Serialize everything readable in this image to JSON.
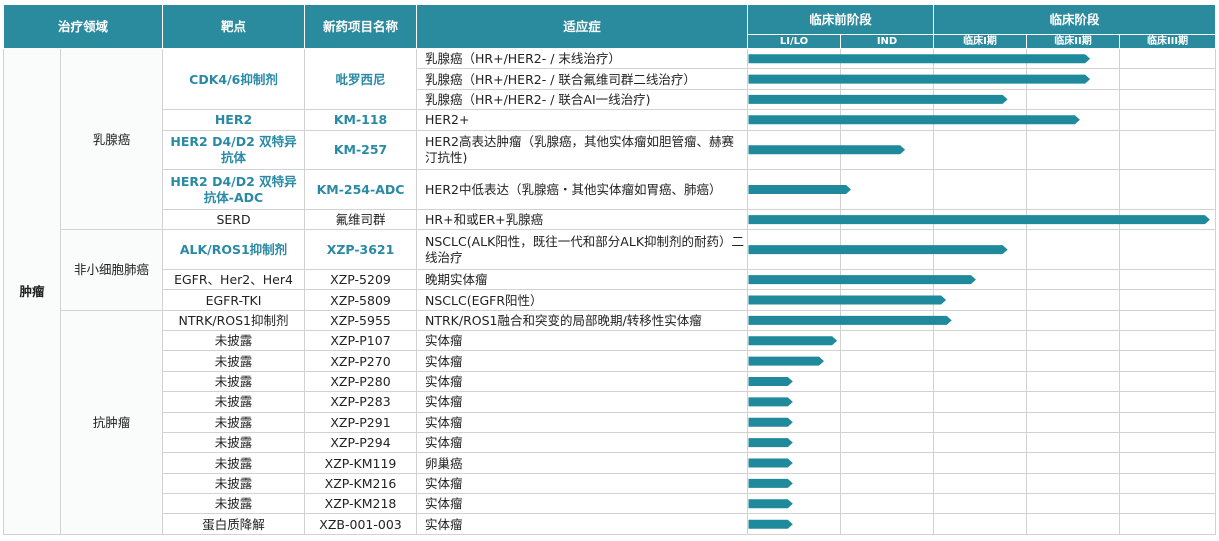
{
  "header": {
    "area": "治疗领域",
    "target": "靶点",
    "project": "新药项目名称",
    "indication": "适应症",
    "preclinical": "临床前阶段",
    "clinical": "临床阶段",
    "stages": [
      "LI/LO",
      "IND",
      "临床I期",
      "临床II期",
      "临床III期"
    ]
  },
  "areas": {
    "tumor": "肿瘤",
    "breast": "乳腺癌",
    "nsclc": "非小细胞肺癌",
    "antitumor": "抗肿瘤"
  },
  "bar_color": "#1f8a9c",
  "rows": [
    {
      "target": "CDK4/6抑制剂",
      "project": "吡罗西尼",
      "indication": "乳腺癌（HR+/HER2- / 末线治疗）",
      "progress": 0.733
    },
    {
      "target": "",
      "project": "",
      "indication": "乳腺癌（HR+/HER2- / 联合氟维司群二线治疗）",
      "progress": 0.733
    },
    {
      "target": "",
      "project": "",
      "indication": "乳腺癌（HR+/HER2- / 联合AI一线治疗)",
      "progress": 0.556
    },
    {
      "target": "HER2",
      "project": "KM-118",
      "indication": "HER2+",
      "progress": 0.711
    },
    {
      "target": "HER2 D4/D2 双特异抗体",
      "project": "KM-257",
      "indication": "HER2高表达肿瘤（乳腺癌，其他实体瘤如胆管瘤、赫赛汀抗性)",
      "progress": 0.336
    },
    {
      "target": "HER2 D4/D2 双特异抗体-ADC",
      "project": "KM-254-ADC",
      "indication": "HER2中低表达（乳腺癌・其他实体瘤如胃癌、肺癌）",
      "progress": 0.22
    },
    {
      "target": "SERD",
      "project": "氟维司群",
      "indication": "HR+和或ER+乳腺癌",
      "progress": 0.99
    },
    {
      "target": "ALK/ROS1抑制剂",
      "project": "XZP-3621",
      "indication": "NSCLC(ALK阳性，既往一代和部分ALK抑制剂的耐药）二线治疗",
      "progress": 0.556
    },
    {
      "target": "EGFR、Her2、Her4",
      "project": "XZP-5209",
      "indication": "晚期实体瘤",
      "progress": 0.488
    },
    {
      "target": "EGFR-TKI",
      "project": "XZP-5809",
      "indication": "NSCLC(EGFR阳性）",
      "progress": 0.424
    },
    {
      "target": "NTRK/ROS1抑制剂",
      "project": "XZP-5955",
      "indication": "NTRK/ROS1融合和突变的局部晚期/转移性实体瘤",
      "progress": 0.436
    },
    {
      "target": "未披露",
      "project": "XZP-P107",
      "indication": "实体瘤",
      "progress": 0.19
    },
    {
      "target": "未披露",
      "project": "XZP-P270",
      "indication": "实体瘤",
      "progress": 0.162
    },
    {
      "target": "未披露",
      "project": "XZP-P280",
      "indication": "实体瘤",
      "progress": 0.095
    },
    {
      "target": "未披露",
      "project": "XZP-P283",
      "indication": "实体瘤",
      "progress": 0.095
    },
    {
      "target": "未披露",
      "project": "XZP-P291",
      "indication": "实体瘤",
      "progress": 0.095
    },
    {
      "target": "未披露",
      "project": "XZP-P294",
      "indication": "实体瘤",
      "progress": 0.095
    },
    {
      "target": "未披露",
      "project": "XZP-KM119",
      "indication": "卵巢癌",
      "progress": 0.095
    },
    {
      "target": "未披露",
      "project": "XZP-KM216",
      "indication": "实体瘤",
      "progress": 0.095
    },
    {
      "target": "未披露",
      "project": "XZP-KM218",
      "indication": "实体瘤",
      "progress": 0.095
    },
    {
      "target": "蛋白质降解",
      "project": "XZB-001-003",
      "indication": "实体瘤",
      "progress": 0.095
    }
  ]
}
